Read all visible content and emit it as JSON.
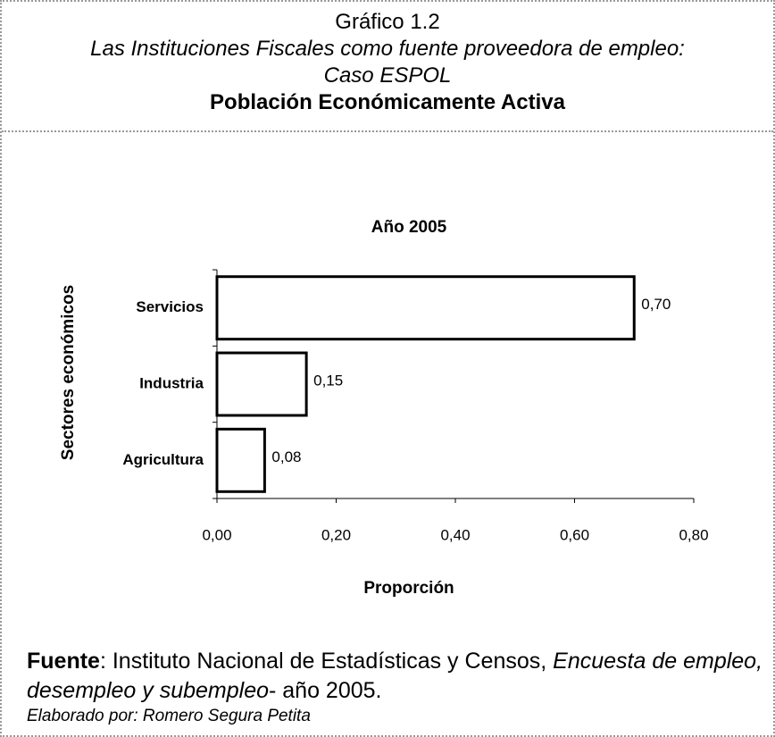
{
  "header": {
    "number": "Gráfico 1.2",
    "subtitle": "Las Instituciones Fiscales como fuente proveedora de empleo: Caso ESPOL",
    "title": "Población Económicamente Activa"
  },
  "chart_data": {
    "type": "barh",
    "title": "Año 2005",
    "categories": [
      "Servicios",
      "Industria",
      "Agricultura"
    ],
    "values": [
      0.7,
      0.15,
      0.08
    ],
    "value_labels": [
      "0,70",
      "0,15",
      "0,08"
    ],
    "color": "#ffffff",
    "xlim": [
      0,
      0.8
    ],
    "xticks": [
      {
        "value": 0,
        "label": "0,00"
      },
      {
        "value": 0.2,
        "label": "0,20"
      },
      {
        "value": 0.4,
        "label": "0,40"
      },
      {
        "value": 0.6,
        "label": "0,60"
      },
      {
        "value": 0.8,
        "label": "0,80"
      }
    ],
    "xlabel": "Proporción",
    "ylabel": "Sectores económicos",
    "grid": false
  },
  "footer": {
    "source_label": "Fuente",
    "source_text": ": Instituto Nacional de Estadísticas y Censos, ",
    "source_title": "Encuesta de empleo, desempleo y subempleo",
    "source_year": "- año 2005.",
    "author": "Elaborado por: Romero Segura Petita"
  }
}
